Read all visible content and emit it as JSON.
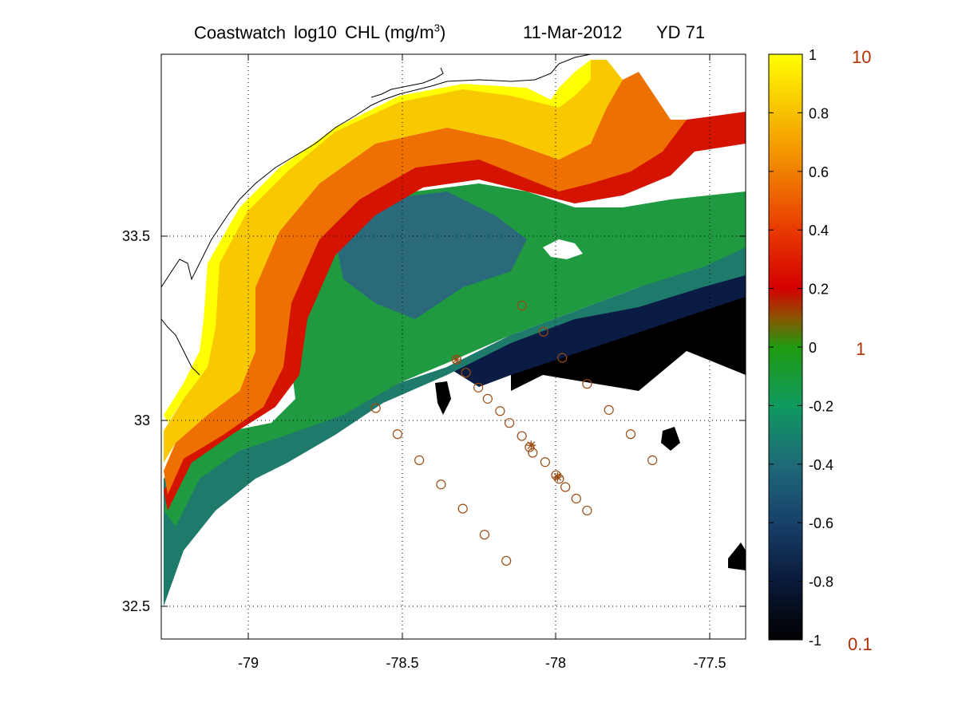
{
  "title": {
    "product": "Coastwatch",
    "variable": "log10",
    "name": "CHL",
    "units_prefix": "(mg/m",
    "units_exp": "3",
    "units_suffix": ")",
    "date": "11-Mar-2012",
    "yearday": "YD 71"
  },
  "map": {
    "lon_range": [
      -79.28,
      -77.4
    ],
    "lat_range": [
      32.42,
      33.99
    ],
    "lon_ticks": [
      "-79",
      "-78.5",
      "-78",
      "-77.5"
    ],
    "lat_ticks": [
      "33.5",
      "33",
      "32.5"
    ],
    "grid": "dotted"
  },
  "colorbar": {
    "ticks": [
      "1",
      "0.8",
      "0.6",
      "0.4",
      "0.2",
      "0",
      "-0.2",
      "-0.4",
      "-0.6",
      "-0.8",
      "-1"
    ],
    "linear_labels": [
      "10",
      "1",
      "0.1"
    ],
    "linear_color": "#b03000",
    "range": [
      -1,
      1
    ]
  },
  "colors": {
    "coast": "#000000",
    "marker": "#9a4a10",
    "grid": "#000000"
  },
  "stations": {
    "circles": [
      [
        -78.12,
        33.315
      ],
      [
        -78.05,
        33.245
      ],
      [
        -77.99,
        33.175
      ],
      [
        -77.91,
        33.105
      ],
      [
        -77.84,
        33.035
      ],
      [
        -77.77,
        32.97
      ],
      [
        -77.7,
        32.9
      ],
      [
        -78.33,
        33.17
      ],
      [
        -78.3,
        33.135
      ],
      [
        -78.26,
        33.095
      ],
      [
        -78.23,
        33.065
      ],
      [
        -78.19,
        33.032
      ],
      [
        -78.16,
        33.0
      ],
      [
        -78.12,
        32.965
      ],
      [
        -78.095,
        32.935
      ],
      [
        -78.085,
        32.92
      ],
      [
        -78.045,
        32.895
      ],
      [
        -78.01,
        32.86
      ],
      [
        -78.0,
        32.85
      ],
      [
        -77.98,
        32.828
      ],
      [
        -77.945,
        32.797
      ],
      [
        -77.91,
        32.765
      ],
      [
        -78.59,
        33.04
      ],
      [
        -78.52,
        32.97
      ],
      [
        -78.45,
        32.9
      ],
      [
        -78.38,
        32.835
      ],
      [
        -78.31,
        32.77
      ],
      [
        -78.24,
        32.7
      ],
      [
        -78.17,
        32.63
      ]
    ],
    "asterisks": [
      [
        -78.33,
        33.17
      ],
      [
        -78.09,
        32.94
      ],
      [
        -78.005,
        32.855
      ]
    ]
  }
}
